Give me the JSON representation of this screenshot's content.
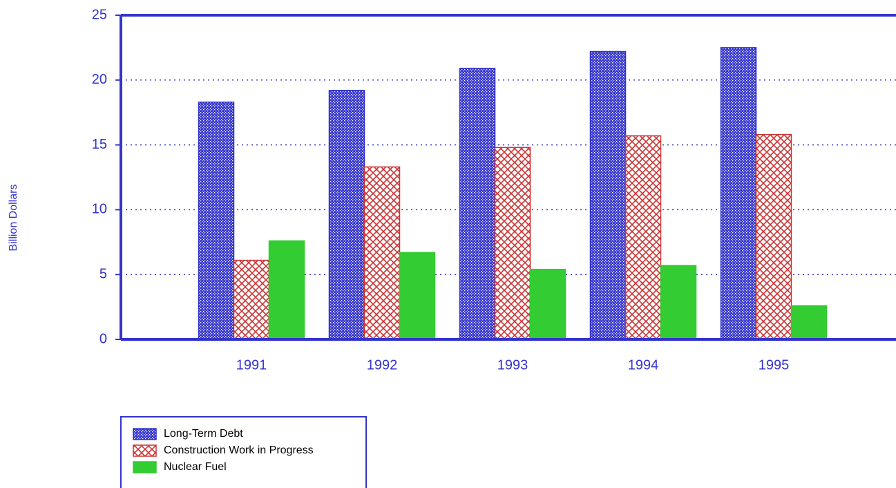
{
  "chart_data": {
    "type": "bar",
    "y_label": "Billion Dollars",
    "categories": [
      "1991",
      "1992",
      "1993",
      "1994",
      "1995"
    ],
    "series": [
      {
        "name": "Long-Term Debt",
        "color": "#3333cc",
        "values": [
          18.3,
          19.2,
          20.9,
          22.2,
          22.5
        ]
      },
      {
        "name": "Construction Work in Progress",
        "color": "#cc3333",
        "values": [
          6.1,
          13.3,
          14.8,
          15.7,
          15.8
        ]
      },
      {
        "name": "Nuclear Fuel",
        "color": "#33cc33",
        "values": [
          7.6,
          6.7,
          5.4,
          5.7,
          2.6
        ]
      }
    ],
    "ylim": [
      0,
      25
    ],
    "yticks": [
      0,
      5,
      10,
      15,
      20,
      25
    ],
    "grid": true
  }
}
